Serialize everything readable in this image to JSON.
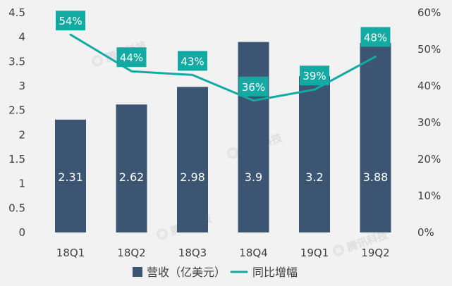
{
  "chart_data": {
    "type": "bar+line",
    "categories": [
      "18Q1",
      "18Q2",
      "18Q3",
      "18Q4",
      "19Q1",
      "19Q2"
    ],
    "series": [
      {
        "name": "营收（亿美元）",
        "kind": "bar",
        "axis": "left",
        "values": [
          2.31,
          2.62,
          2.98,
          3.9,
          3.2,
          3.88
        ],
        "labels": [
          "2.31",
          "2.62",
          "2.98",
          "3.9",
          "3.2",
          "3.88"
        ],
        "color": "#3b5572"
      },
      {
        "name": "同比增幅",
        "kind": "line",
        "axis": "right",
        "values": [
          54,
          44,
          43,
          36,
          39,
          48
        ],
        "labels": [
          "54%",
          "44%",
          "43%",
          "36%",
          "39%",
          "48%"
        ],
        "color": "#13aaa3"
      }
    ],
    "y_left": {
      "min": 0,
      "max": 4.5,
      "ticks": [
        "0",
        "0.5",
        "1",
        "1.5",
        "2",
        "2.5",
        "3",
        "3.5",
        "4",
        "4.5"
      ]
    },
    "y_right": {
      "min": 0,
      "max": 60,
      "ticks": [
        "0%",
        "10%",
        "20%",
        "30%",
        "40%",
        "50%",
        "60%"
      ]
    },
    "grid": false,
    "legend": {
      "position": "bottom-center",
      "items": [
        "营收（亿美元）",
        "同比增幅"
      ]
    },
    "watermark": "腾讯科技"
  }
}
